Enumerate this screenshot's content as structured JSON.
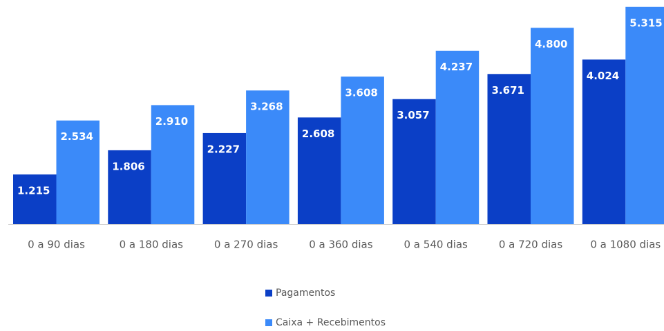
{
  "chart_data": {
    "type": "bar",
    "categories": [
      "0 a 90 dias",
      "0 a 180 dias",
      "0 a 270 dias",
      "0 a 360 dias",
      "0 a 540 dias",
      "0 a 720 dias",
      "0 a 1080 dias"
    ],
    "series": [
      {
        "name": "Pagamentos",
        "color": "#0b3fc6",
        "values": [
          1215,
          1806,
          2227,
          2608,
          3057,
          3671,
          4024
        ],
        "value_labels": [
          "1.215",
          "1.806",
          "2.227",
          "2.608",
          "3.057",
          "3.671",
          "4.024"
        ]
      },
      {
        "name": "Caixa + Recebimentos",
        "color": "#3b8af9",
        "values": [
          2534,
          2910,
          3268,
          3608,
          4237,
          4800,
          5315
        ],
        "value_labels": [
          "2.534",
          "2.910",
          "3.268",
          "3.608",
          "4.237",
          "4.800",
          "5.315"
        ]
      }
    ]
  }
}
